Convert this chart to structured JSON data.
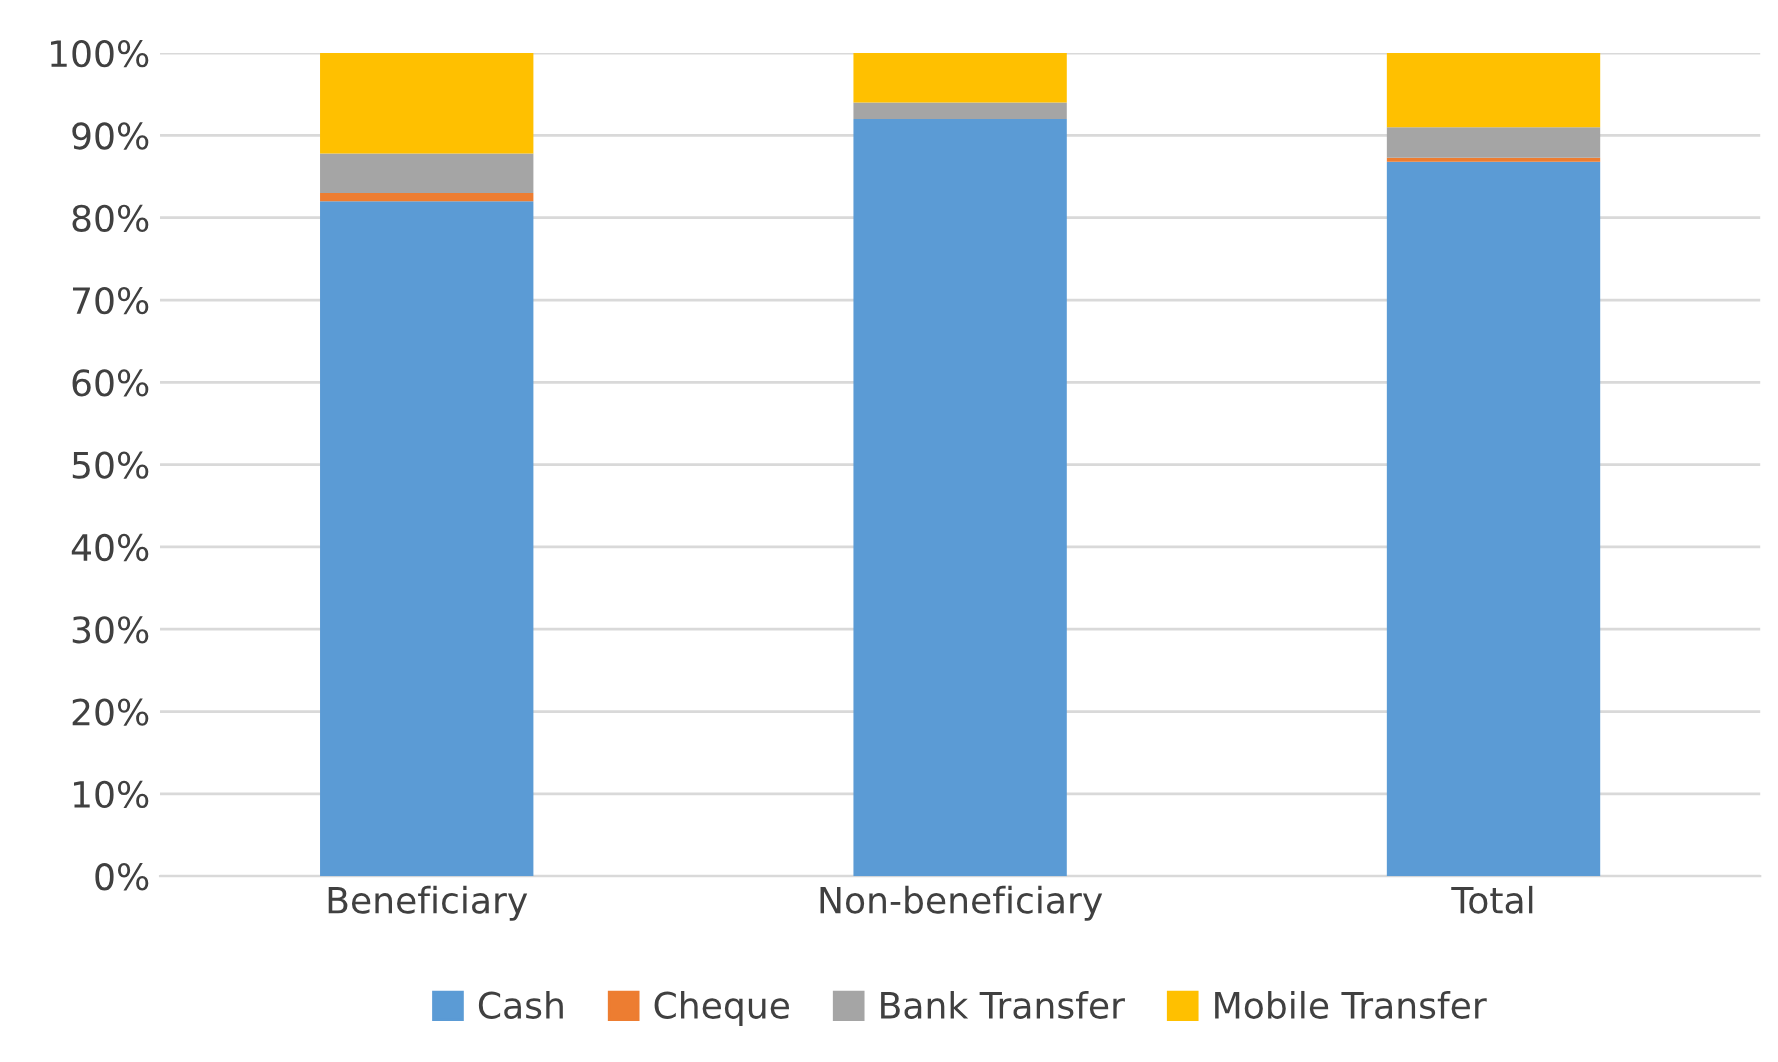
{
  "chart_data": {
    "type": "bar",
    "stacked": true,
    "categories": [
      "Beneficiary",
      "Non-beneficiary",
      "Total"
    ],
    "series": [
      {
        "name": "Cash",
        "color": "#5b9bd5",
        "values": [
          82,
          92,
          86.8
        ]
      },
      {
        "name": "Cheque",
        "color": "#ed7d31",
        "values": [
          1,
          0,
          0.5
        ]
      },
      {
        "name": "Bank Transfer",
        "color": "#a5a5a5",
        "values": [
          4.8,
          2,
          3.7
        ]
      },
      {
        "name": "Mobile Transfer",
        "color": "#ffc000",
        "values": [
          12.2,
          6,
          9
        ]
      }
    ],
    "ylim": [
      0,
      100
    ],
    "yticks": [
      {
        "value": 0,
        "label": "0%"
      },
      {
        "value": 10,
        "label": "10%"
      },
      {
        "value": 20,
        "label": "20%"
      },
      {
        "value": 30,
        "label": "30%"
      },
      {
        "value": 40,
        "label": "40%"
      },
      {
        "value": 50,
        "label": "50%"
      },
      {
        "value": 60,
        "label": "60%"
      },
      {
        "value": 70,
        "label": "70%"
      },
      {
        "value": 80,
        "label": "80%"
      },
      {
        "value": 90,
        "label": "90%"
      },
      {
        "value": 100,
        "label": "100%"
      }
    ],
    "grid": "y",
    "legend": "bottom"
  }
}
